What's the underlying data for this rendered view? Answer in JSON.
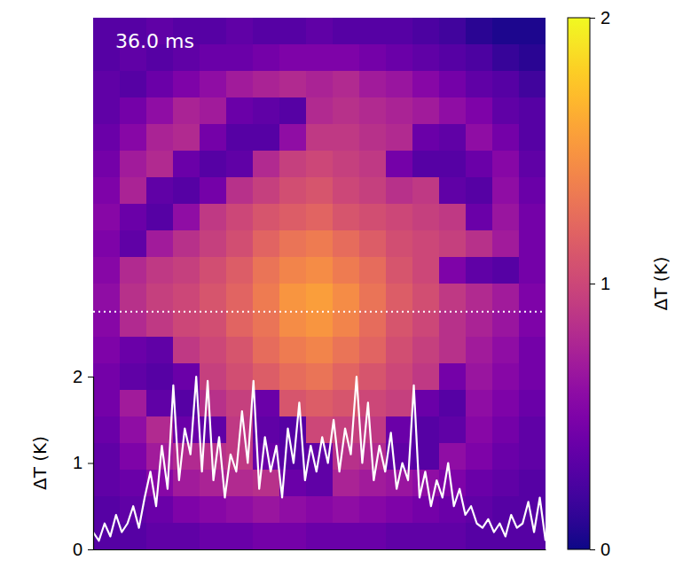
{
  "chart_data": [
    {
      "type": "heatmap",
      "annotation": "36.0 ms",
      "tick_labels": false,
      "cells": [
        [
          0.3,
          0.3,
          0.35,
          0.3,
          0.3,
          0.35,
          0.3,
          0.3,
          0.35,
          0.3,
          0.3,
          0.3,
          0.25,
          0.2,
          0.1,
          0.05,
          0.05
        ],
        [
          0.3,
          0.35,
          0.3,
          0.35,
          0.4,
          0.4,
          0.45,
          0.5,
          0.5,
          0.5,
          0.45,
          0.4,
          0.35,
          0.3,
          0.25,
          0.15,
          0.1
        ],
        [
          0.35,
          0.3,
          0.4,
          0.5,
          0.6,
          0.7,
          0.75,
          0.8,
          0.75,
          0.8,
          0.7,
          0.65,
          0.55,
          0.45,
          0.35,
          0.3,
          0.2
        ],
        [
          0.35,
          0.45,
          0.6,
          0.75,
          0.7,
          0.4,
          0.35,
          0.3,
          0.8,
          0.85,
          0.8,
          0.75,
          0.7,
          0.6,
          0.5,
          0.35,
          0.3
        ],
        [
          0.4,
          0.55,
          0.75,
          0.8,
          0.45,
          0.3,
          0.3,
          0.6,
          0.9,
          0.9,
          0.85,
          0.8,
          0.4,
          0.35,
          0.6,
          0.45,
          0.3
        ],
        [
          0.45,
          0.7,
          0.8,
          0.4,
          0.3,
          0.35,
          0.8,
          0.95,
          1.0,
          0.95,
          0.9,
          0.45,
          0.3,
          0.3,
          0.4,
          0.55,
          0.35
        ],
        [
          0.5,
          0.75,
          0.35,
          0.3,
          0.45,
          0.85,
          0.95,
          1.05,
          1.1,
          1.0,
          0.95,
          0.85,
          0.9,
          0.35,
          0.3,
          0.6,
          0.4
        ],
        [
          0.55,
          0.4,
          0.3,
          0.6,
          0.9,
          1.0,
          1.1,
          1.15,
          1.2,
          1.1,
          1.05,
          1.0,
          0.95,
          0.9,
          0.4,
          0.65,
          0.45
        ],
        [
          0.5,
          0.35,
          0.7,
          0.85,
          0.95,
          1.05,
          1.2,
          1.3,
          1.35,
          1.25,
          1.15,
          1.05,
          1.0,
          0.95,
          0.85,
          0.7,
          0.45
        ],
        [
          0.55,
          0.8,
          0.9,
          0.95,
          1.05,
          1.15,
          1.3,
          1.4,
          1.45,
          1.35,
          1.25,
          1.1,
          1.0,
          0.5,
          0.35,
          0.3,
          0.45
        ],
        [
          0.6,
          0.85,
          0.95,
          1.0,
          1.1,
          1.2,
          1.35,
          1.5,
          1.55,
          1.45,
          1.3,
          1.15,
          1.05,
          0.9,
          0.8,
          0.7,
          0.5
        ],
        [
          0.55,
          0.8,
          0.9,
          1.0,
          1.05,
          1.2,
          1.3,
          1.45,
          1.5,
          1.4,
          1.25,
          1.1,
          1.0,
          0.85,
          0.75,
          0.65,
          0.5
        ],
        [
          0.5,
          0.4,
          0.35,
          0.9,
          1.0,
          1.1,
          1.25,
          1.35,
          1.4,
          1.3,
          1.2,
          1.05,
          0.95,
          0.85,
          0.7,
          0.6,
          0.45
        ],
        [
          0.45,
          0.35,
          0.3,
          0.4,
          0.95,
          1.05,
          1.15,
          1.25,
          1.3,
          1.2,
          1.1,
          1.0,
          0.9,
          0.45,
          0.65,
          0.55,
          0.45
        ],
        [
          0.45,
          0.7,
          0.35,
          0.3,
          0.85,
          0.95,
          0.4,
          1.1,
          1.15,
          1.1,
          1.0,
          0.95,
          0.4,
          0.3,
          0.6,
          0.5,
          0.4
        ],
        [
          0.4,
          0.6,
          0.8,
          0.4,
          0.35,
          0.9,
          0.35,
          0.3,
          1.0,
          0.95,
          0.9,
          0.4,
          0.3,
          0.35,
          0.55,
          0.45,
          0.35
        ],
        [
          0.35,
          0.5,
          0.7,
          0.8,
          0.85,
          0.9,
          0.4,
          0.3,
          0.35,
          0.85,
          0.8,
          0.35,
          0.3,
          0.6,
          0.5,
          0.4,
          0.35
        ],
        [
          0.35,
          0.4,
          0.55,
          0.7,
          0.75,
          0.8,
          0.85,
          0.4,
          0.35,
          0.75,
          0.7,
          0.65,
          0.6,
          0.5,
          0.4,
          0.35,
          0.3
        ],
        [
          0.3,
          0.35,
          0.4,
          0.5,
          0.55,
          0.6,
          0.65,
          0.6,
          0.55,
          0.6,
          0.55,
          0.5,
          0.45,
          0.4,
          0.35,
          0.3,
          0.3
        ],
        [
          0.3,
          0.3,
          0.35,
          0.35,
          0.4,
          0.4,
          0.45,
          0.45,
          0.4,
          0.4,
          0.4,
          0.35,
          0.35,
          0.35,
          0.3,
          0.3,
          0.3
        ]
      ],
      "colorbar": {
        "range": [
          0,
          2
        ],
        "ticks": [
          0,
          1,
          2
        ],
        "label": "ΔT (K)"
      }
    },
    {
      "type": "line",
      "ylabel": "ΔT (K)",
      "color": "#ffffff",
      "tick_labels": "y",
      "xlim": [
        0,
        79
      ],
      "ylim": [
        0,
        2
      ],
      "yticks": [
        0,
        1,
        2
      ],
      "x": [
        0,
        1,
        2,
        3,
        4,
        5,
        6,
        7,
        8,
        9,
        10,
        11,
        12,
        13,
        14,
        15,
        16,
        17,
        18,
        19,
        20,
        21,
        22,
        23,
        24,
        25,
        26,
        27,
        28,
        29,
        30,
        31,
        32,
        33,
        34,
        35,
        36,
        37,
        38,
        39,
        40,
        41,
        42,
        43,
        44,
        45,
        46,
        47,
        48,
        49,
        50,
        51,
        52,
        53,
        54,
        55,
        56,
        57,
        58,
        59,
        60,
        61,
        62,
        63,
        64,
        65,
        66,
        67,
        68,
        69,
        70,
        71,
        72,
        73,
        74,
        75,
        76,
        77,
        78,
        79
      ],
      "values": [
        0.2,
        0.1,
        0.3,
        0.15,
        0.4,
        0.2,
        0.3,
        0.5,
        0.25,
        0.6,
        0.9,
        0.5,
        1.2,
        0.7,
        1.9,
        0.8,
        1.4,
        1.1,
        2.0,
        0.9,
        1.95,
        0.8,
        1.3,
        0.6,
        1.1,
        0.9,
        1.6,
        1.0,
        1.95,
        0.7,
        1.3,
        0.9,
        1.2,
        0.6,
        1.4,
        1.0,
        1.7,
        0.8,
        1.2,
        0.9,
        1.3,
        1.0,
        1.5,
        0.9,
        1.4,
        1.1,
        2.0,
        1.0,
        1.7,
        0.8,
        1.2,
        0.9,
        1.35,
        0.7,
        1.0,
        0.8,
        1.9,
        0.6,
        0.9,
        0.5,
        0.8,
        0.6,
        1.0,
        0.5,
        0.7,
        0.4,
        0.5,
        0.3,
        0.25,
        0.35,
        0.2,
        0.3,
        0.15,
        0.4,
        0.25,
        0.3,
        0.55,
        0.2,
        0.6,
        0.1
      ]
    }
  ]
}
